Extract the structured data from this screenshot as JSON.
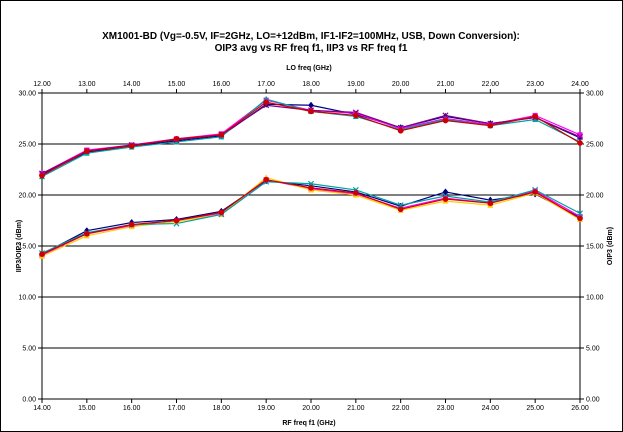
{
  "chart_data": {
    "type": "line",
    "title": "XM1001-BD (Vg=-0.5V, IF=2GHz, LO=+12dBm, IF1-IF2=100MHz, USB, Down Conversion):",
    "subtitle": "OIP3 avg vs RF freq f1, IIP3 vs RF freq f1",
    "xlabel": "RF freq f1 (GHz)",
    "x2label": "LO freq (GHz)",
    "ylabel": "IIP3/OIP3 (dBm)",
    "y2label": "OIP3 (dBm)",
    "xlim": [
      14,
      26
    ],
    "x2lim": [
      12,
      24
    ],
    "ylim": [
      0,
      30
    ],
    "grid": "horizontal",
    "legend": "none",
    "x_tick_labels": [
      "14.00",
      "15.00",
      "16.00",
      "17.00",
      "18.00",
      "19.00",
      "20.00",
      "21.00",
      "22.00",
      "23.00",
      "24.00",
      "25.00",
      "26.00"
    ],
    "x2_tick_labels": [
      "12.00",
      "13.00",
      "14.00",
      "15.00",
      "16.00",
      "17.00",
      "18.00",
      "19.00",
      "20.00",
      "21.00",
      "22.00",
      "23.00",
      "24.00"
    ],
    "y_tick_labels": [
      "0.00",
      "5.00",
      "10.00",
      "15.00",
      "20.00",
      "25.00",
      "30.00"
    ],
    "y2_tick_labels": [
      "0.00",
      "5.00",
      "10.00",
      "15.00",
      "20.00",
      "25.00",
      "30.00"
    ],
    "x": [
      14,
      15,
      16,
      17,
      18,
      19,
      20,
      21,
      22,
      23,
      24,
      25,
      26
    ],
    "series": [
      {
        "color": "#000080",
        "marker": "diamond",
        "values": [
          22.0,
          24.2,
          24.8,
          25.3,
          25.8,
          28.9,
          28.8,
          27.9,
          26.6,
          27.7,
          27.0,
          27.6,
          25.6
        ]
      },
      {
        "color": "#ff00ff",
        "marker": "square",
        "values": [
          22.1,
          24.4,
          24.9,
          25.5,
          26.0,
          29.3,
          28.3,
          28.0,
          26.5,
          27.5,
          26.9,
          27.8,
          25.9
        ]
      },
      {
        "color": "#00a0a0",
        "marker": "triangle",
        "values": [
          21.8,
          24.1,
          24.7,
          25.2,
          25.7,
          29.4,
          28.2,
          27.7,
          26.4,
          27.4,
          26.8,
          27.4,
          25.2
        ]
      },
      {
        "color": "#800080",
        "marker": "x",
        "values": [
          22.1,
          24.3,
          24.9,
          25.4,
          25.9,
          28.8,
          28.3,
          28.1,
          26.6,
          27.8,
          27.0,
          27.6,
          25.7
        ]
      },
      {
        "color": "#cc0000",
        "marker": "circle",
        "values": [
          21.9,
          24.3,
          24.8,
          25.5,
          25.9,
          29.1,
          28.2,
          27.8,
          26.3,
          27.3,
          26.8,
          27.7,
          25.1
        ]
      },
      {
        "color": "#000080",
        "marker": "diamond",
        "values": [
          14.2,
          16.5,
          17.3,
          17.6,
          18.4,
          21.4,
          20.9,
          20.3,
          18.9,
          20.3,
          19.5,
          20.1,
          17.8
        ]
      },
      {
        "color": "#ff00ff",
        "marker": "square",
        "values": [
          14.1,
          16.2,
          17.0,
          17.5,
          18.2,
          21.5,
          20.6,
          20.1,
          18.7,
          19.7,
          19.2,
          20.4,
          17.9
        ]
      },
      {
        "color": "#ffcc00",
        "marker": "triangle",
        "values": [
          14.0,
          16.0,
          16.9,
          17.4,
          18.1,
          21.7,
          20.5,
          20.0,
          18.5,
          19.4,
          19.0,
          20.2,
          17.6
        ]
      },
      {
        "color": "#00a0a0",
        "marker": "x",
        "values": [
          14.3,
          16.3,
          17.1,
          17.2,
          18.1,
          21.3,
          21.1,
          20.5,
          19.0,
          19.9,
          19.3,
          20.5,
          18.2
        ]
      },
      {
        "color": "#cc0000",
        "marker": "circle",
        "values": [
          14.2,
          16.2,
          17.1,
          17.5,
          18.3,
          21.5,
          20.7,
          20.2,
          18.6,
          19.6,
          19.2,
          20.3,
          17.7
        ]
      }
    ]
  }
}
